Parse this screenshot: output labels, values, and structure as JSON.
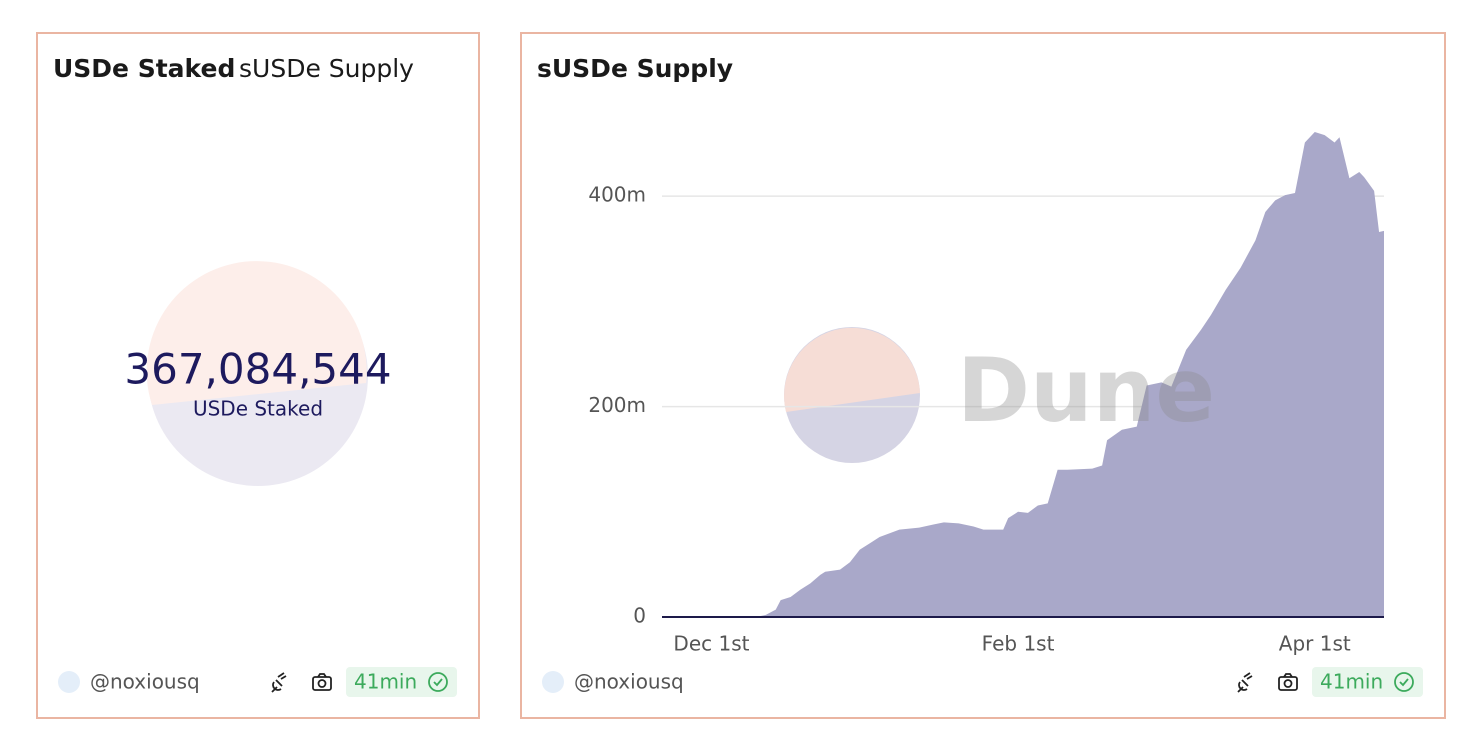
{
  "panels": [
    {
      "tabs": [
        "USDe Staked",
        "sUSDe Supply"
      ],
      "counter": {
        "value": "367,084,544",
        "label": "USDe Staked"
      },
      "footer": {
        "user": "@noxiousq",
        "age": "41min"
      }
    },
    {
      "footer": {
        "user": "@noxiousq",
        "age": "41min"
      }
    }
  ],
  "watermark": "Dune",
  "chart_data": {
    "type": "area",
    "title": "sUSDe Supply",
    "x": [
      0,
      19,
      21,
      23,
      24,
      26,
      28,
      30,
      32,
      33,
      36,
      38,
      40,
      42,
      44,
      48,
      52,
      55,
      57,
      60,
      63,
      65,
      69,
      70,
      72,
      74,
      76,
      78,
      80,
      82,
      87,
      89,
      90,
      93,
      96,
      98,
      101,
      103,
      106,
      109,
      111,
      114,
      117,
      120,
      122,
      124,
      126,
      128,
      130,
      132,
      134,
      136,
      137,
      139,
      141,
      142,
      144,
      145,
      146
    ],
    "values": [
      0,
      0,
      2,
      7,
      16,
      19,
      26,
      32,
      40,
      43,
      45,
      52,
      64,
      70,
      76,
      83,
      85,
      88,
      90,
      89,
      86,
      83,
      83,
      94,
      100,
      99,
      106,
      108,
      140,
      140,
      141,
      144,
      168,
      178,
      181,
      220,
      223,
      219,
      254,
      273,
      287,
      311,
      332,
      358,
      385,
      396,
      401,
      403,
      451,
      461,
      458,
      451,
      456,
      417,
      423,
      418,
      405,
      366,
      367
    ],
    "color": "#a9a8c9",
    "xlim": [
      0,
      146
    ],
    "xticks": [
      {
        "value": 10,
        "label": "Dec 1st"
      },
      {
        "value": 72,
        "label": "Feb 1st"
      },
      {
        "value": 132,
        "label": "Apr 1st"
      }
    ],
    "ylim": [
      0,
      480
    ],
    "yticks": [
      0,
      {
        "value": 200,
        "label": "200m"
      },
      {
        "value": 400,
        "label": "400m"
      }
    ],
    "grid": true
  }
}
